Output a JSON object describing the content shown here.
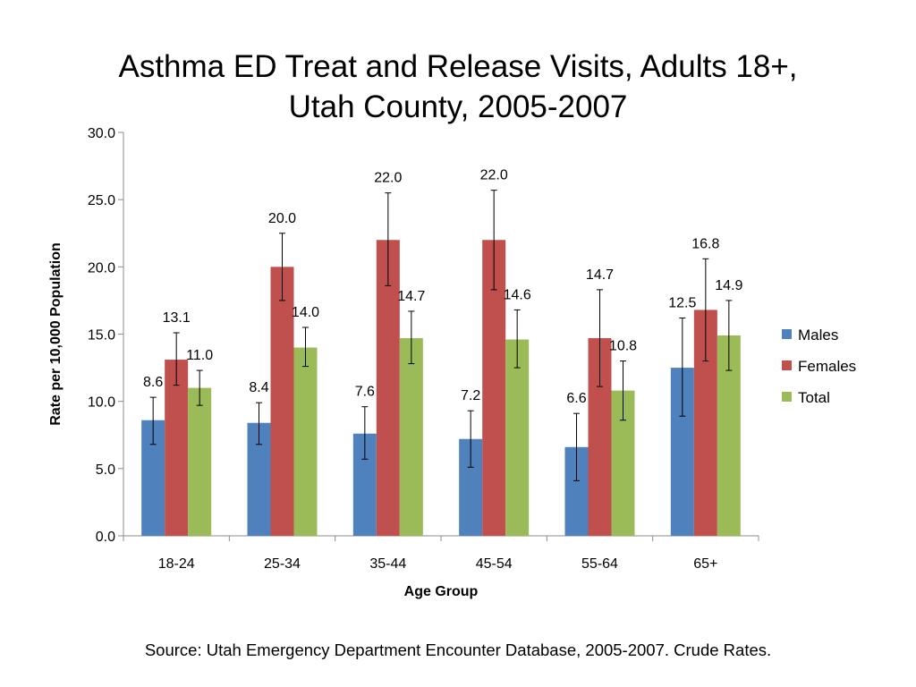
{
  "slide": {
    "title_line1": "Asthma ED Treat and Release Visits, Adults 18+,",
    "title_line2": "Utah County, 2005-2007",
    "source": "Source: Utah Emergency Department Encounter Database, 2005-2007. Crude Rates."
  },
  "chart_data": {
    "type": "bar",
    "xlabel": "Age Group",
    "ylabel": "Rate per 10,000 Population",
    "ylim": [
      0,
      30
    ],
    "y_ticks": [
      "0.0",
      "5.0",
      "10.0",
      "15.0",
      "20.0",
      "25.0",
      "30.0"
    ],
    "grid": false,
    "legend_position": "right",
    "categories": [
      "18-24",
      "25-34",
      "35-44",
      "45-54",
      "55-64",
      "65+"
    ],
    "series": [
      {
        "name": "Males",
        "color": "#4F81BD",
        "values": [
          8.6,
          8.4,
          7.6,
          7.2,
          6.6,
          12.5
        ],
        "labels": [
          "8.6",
          "8.4",
          "7.6",
          "7.2",
          "6.6",
          "12.5"
        ],
        "error_low": [
          6.8,
          6.8,
          5.7,
          5.1,
          4.1,
          8.9
        ],
        "error_high": [
          10.3,
          9.9,
          9.6,
          9.3,
          9.1,
          16.2
        ]
      },
      {
        "name": "Females",
        "color": "#C0504D",
        "values": [
          13.1,
          20.0,
          22.0,
          22.0,
          14.7,
          16.8
        ],
        "labels": [
          "13.1",
          "20.0",
          "22.0",
          "22.0",
          "14.7",
          "16.8"
        ],
        "error_low": [
          11.2,
          17.5,
          18.6,
          18.3,
          11.1,
          13.0
        ],
        "error_high": [
          15.1,
          22.5,
          25.5,
          25.7,
          18.3,
          20.6
        ]
      },
      {
        "name": "Total",
        "color": "#9BBB59",
        "values": [
          11.0,
          14.0,
          14.7,
          14.6,
          10.8,
          14.9
        ],
        "labels": [
          "11.0",
          "14.0",
          "14.7",
          "14.6",
          "10.8",
          "14.9"
        ],
        "error_low": [
          9.7,
          12.6,
          12.8,
          12.5,
          8.6,
          12.3
        ],
        "error_high": [
          12.3,
          15.5,
          16.7,
          16.8,
          13.0,
          17.5
        ]
      }
    ]
  }
}
